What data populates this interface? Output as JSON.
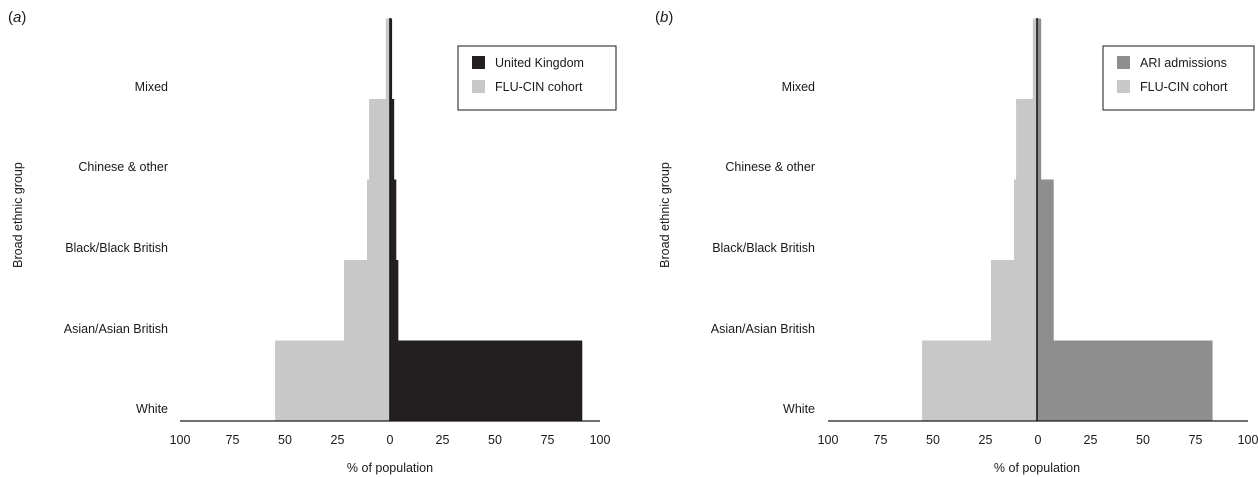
{
  "chart_data": [
    {
      "panel_label": "(a)",
      "panel_letter": "a",
      "type": "bar",
      "orientation": "horizontal",
      "style": "population-pyramid",
      "categories": [
        "White",
        "Asian/Asian British",
        "Black/Black British",
        "Chinese & other",
        "Mixed"
      ],
      "series": [
        {
          "name": "United Kingdom",
          "side": "right",
          "color": "#231f20",
          "values": [
            92,
            4,
            3,
            2,
            1
          ]
        },
        {
          "name": "FLU-CIN cohort",
          "side": "left",
          "color": "#c8c8c8",
          "values": [
            55,
            22,
            11,
            10,
            2
          ]
        }
      ],
      "xlabel": "% of population",
      "ylabel": "Broad ethnic group",
      "xticks": [
        "100",
        "75",
        "50",
        "25",
        "0",
        "25",
        "50",
        "75",
        "100"
      ],
      "xlim": [
        -100,
        100
      ],
      "legend_position": "top-right"
    },
    {
      "panel_label": "(b)",
      "panel_letter": "b",
      "type": "bar",
      "orientation": "horizontal",
      "style": "population-pyramid",
      "categories": [
        "White",
        "Asian/Asian British",
        "Black/Black British",
        "Chinese & other",
        "Mixed"
      ],
      "series": [
        {
          "name": "ARI admissions",
          "side": "right",
          "color": "#8e8e8e",
          "values": [
            84,
            8,
            8,
            2,
            2
          ]
        },
        {
          "name": "FLU-CIN cohort",
          "side": "left",
          "color": "#c8c8c8",
          "values": [
            55,
            22,
            11,
            10,
            2
          ]
        }
      ],
      "xlabel": "% of population",
      "ylabel": "Broad ethnic group",
      "xticks": [
        "100",
        "75",
        "50",
        "25",
        "0",
        "25",
        "50",
        "75",
        "100"
      ],
      "xlim": [
        -100,
        100
      ],
      "legend_position": "top-right"
    }
  ]
}
